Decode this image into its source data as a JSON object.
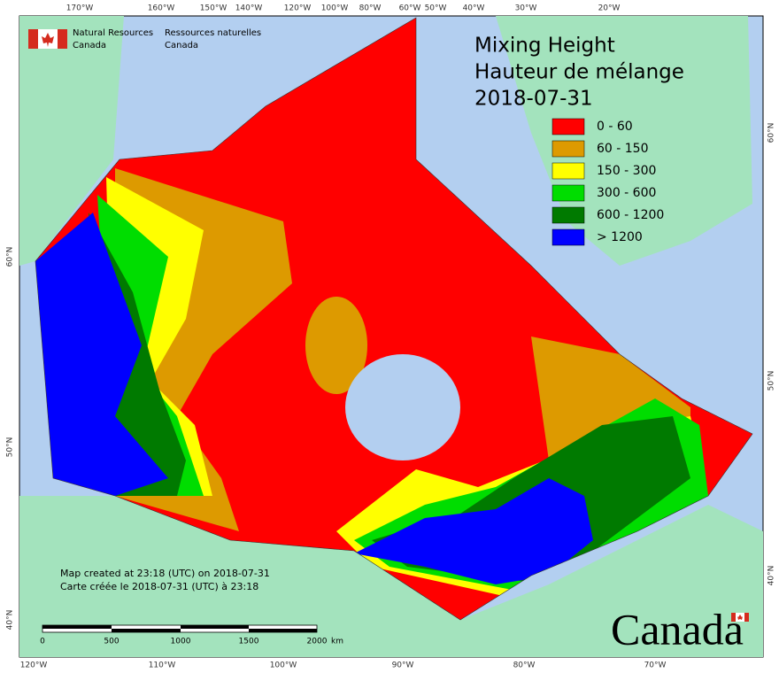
{
  "map": {
    "title": [
      "Mixing Height",
      "Hauteur de mélange",
      "2018-07-31"
    ],
    "legend": [
      {
        "label": "0 - 60",
        "color": "#ff0000"
      },
      {
        "label": "60 - 150",
        "color": "#dd9a00"
      },
      {
        "label": "150 - 300",
        "color": "#ffff00"
      },
      {
        "label": "300 - 600",
        "color": "#00dd00"
      },
      {
        "label": "600 - 1200",
        "color": "#007a00"
      },
      {
        "label": "> 1200",
        "color": "#0000ff"
      }
    ],
    "agency": {
      "en": [
        "Natural Resources",
        "Canada"
      ],
      "fr": [
        "Ressources naturelles",
        "Canada"
      ]
    },
    "notes": [
      "Map created at 23:18 (UTC) on 2018-07-31",
      "Carte créée le 2018-07-31 (UTC) à 23:18"
    ],
    "scale_bar": {
      "ticks": [
        "0",
        "500",
        "1000",
        "1500",
        "2000"
      ],
      "unit": "km"
    },
    "wordmark": "Canada",
    "graticule": {
      "top": [
        "170°W",
        "160°W",
        "150°W",
        "140°W",
        "120°W",
        "100°W",
        "80°W",
        "60°W",
        "50°W",
        "40°W",
        "30°W",
        "20°W"
      ],
      "bottom": [
        "120°W",
        "110°W",
        "100°W",
        "90°W",
        "80°W",
        "70°W"
      ],
      "left": [
        "60°N",
        "50°N",
        "40°N"
      ],
      "right": [
        "60°N",
        "50°N",
        "40°N"
      ]
    }
  }
}
